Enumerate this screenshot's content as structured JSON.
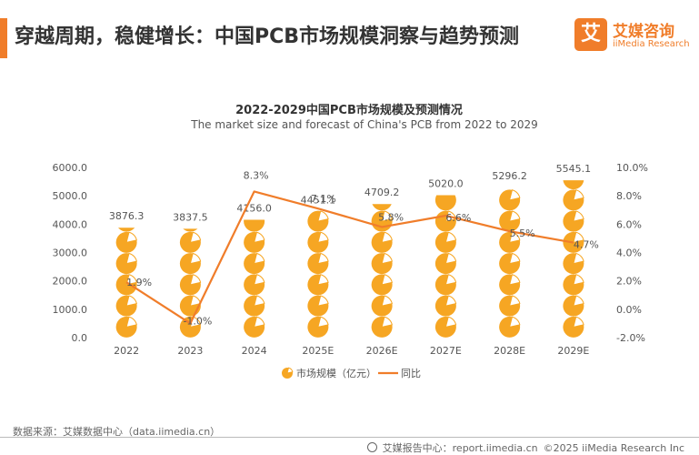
{
  "header": {
    "title": "穿越周期，稳健增长：中国PCB市场规模洞察与趋势预测",
    "logo_mark": "艾",
    "logo_cn": "艾媒咨询",
    "logo_en": "iiMedia Research"
  },
  "colors": {
    "accent": "#f07d2a",
    "bar": "#f6a623",
    "line": "#f07d2a"
  },
  "chart_data": {
    "type": "bar",
    "title": "2022-2029中国PCB市场规模及预测情况",
    "subtitle": "The market size and forecast of China's PCB from 2022 to 2029",
    "categories": [
      "2022",
      "2023",
      "2024",
      "2025E",
      "2026E",
      "2027E",
      "2028E",
      "2029E"
    ],
    "series": [
      {
        "name": "市场规模（亿元）",
        "type": "pictorial-bar",
        "axis": "left",
        "values": [
          3876.3,
          3837.5,
          4156.0,
          4451.1,
          4709.2,
          5020.0,
          5296.2,
          5545.1
        ],
        "labels": [
          "3876.3",
          "3837.5",
          "4156.0",
          "4451.1",
          "4709.2",
          "5020.0",
          "5296.2",
          "5545.1"
        ]
      },
      {
        "name": "同比",
        "type": "line",
        "axis": "right",
        "values": [
          1.9,
          -1.0,
          8.3,
          7.1,
          5.8,
          6.6,
          5.5,
          4.7
        ],
        "labels": [
          "1.9%",
          "-1.0%",
          "8.3%",
          "7.1%",
          "5.8%",
          "6.6%",
          "5.5%",
          "4.7%"
        ]
      }
    ],
    "y_left": {
      "min": 0,
      "max": 6000,
      "ticks": [
        "0.0",
        "1000.0",
        "2000.0",
        "3000.0",
        "4000.0",
        "5000.0",
        "6000.0"
      ]
    },
    "y_right": {
      "min": -2,
      "max": 10,
      "ticks": [
        "-2.0%",
        "0.0%",
        "2.0%",
        "4.0%",
        "6.0%",
        "8.0%",
        "10.0%"
      ]
    },
    "grid": false,
    "legend_position": "bottom"
  },
  "footer": {
    "source": "数据来源：艾媒数据中心（data.iimedia.cn）",
    "report_center": "艾媒报告中心：report.iimedia.cn",
    "copyright": "©2025  iiMedia Research  Inc"
  }
}
